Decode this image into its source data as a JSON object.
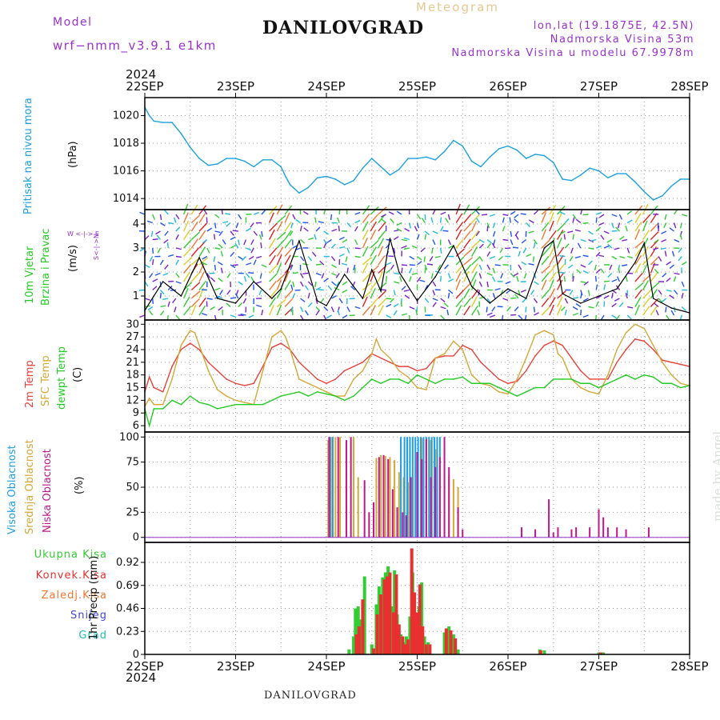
{
  "header": {
    "model_label": "Model",
    "model_name": "wrf−nmm_v3.9.1  e1km",
    "title": "DANILOVGRAD",
    "meteogram": "Meteogram",
    "lonlat": "lon,lat (19.1875E, 42.5N)",
    "elev": "Nadmorska Visina 53m",
    "elev_model": "Nadmorska Visina u modelu 67.9978m",
    "year_top": "2024",
    "year_bottom": "2024",
    "footer_title": "DANILOVGRAD",
    "watermark": "made by Angel"
  },
  "colors": {
    "pressure": "#1ba0e0",
    "temp2m": "#e8413a",
    "sfc": "#d4a838",
    "dewpt": "#22cc22",
    "high_cloud": "#1e9ee8",
    "mid_cloud": "#d4a838",
    "low_cloud": "#c0188c",
    "total_precip": "#33cc33",
    "conv_precip": "#e83030",
    "frozen_precip": "#ee7733",
    "snow": "#4444dd",
    "hail": "#22bbbb",
    "axis_purple": "#9932cc"
  },
  "panels": {
    "pressure": {
      "label": "Pritisak na nivou mora",
      "unit": "(hPa)"
    },
    "wind": {
      "label1": "10m Vjetar",
      "label2": "Brzina i Pravac",
      "unit": "(m/s)",
      "compass": "W  <-|->  E",
      "compass_ns": "S<-|->N"
    },
    "temp": {
      "label1": "2m Temp",
      "label2": "SFC Temp",
      "label3": "dewpt Temp",
      "unit": "(C)"
    },
    "cloud": {
      "label1": "Visoka Oblacnost",
      "label2": "Srednja Oblacnost",
      "label3": "Niska Oblacnost",
      "unit": "(%)"
    },
    "precip": {
      "legend": [
        "Ukupna Kisa",
        "Konvek.Kisa",
        "Zaledj.Kisa",
        "Snijeg",
        "Grad"
      ],
      "unit": "1hr Precip (mm)"
    }
  },
  "chart_data": [
    {
      "type": "line",
      "panel": "pressure",
      "x_ticks": [
        "22SEP",
        "23SEP",
        "24SEP",
        "25SEP",
        "26SEP",
        "27SEP",
        "28SEP"
      ],
      "ylim": [
        1013.2,
        1021.3
      ],
      "y_ticks": [
        1014,
        1016,
        1018,
        1020
      ],
      "grid": true,
      "series": [
        {
          "color_key": "pressure",
          "x": [
            0,
            0.05,
            0.1,
            0.2,
            0.3,
            0.4,
            0.5,
            0.6,
            0.7,
            0.8,
            0.9,
            1.0,
            1.1,
            1.2,
            1.3,
            1.4,
            1.5,
            1.55,
            1.6,
            1.7,
            1.8,
            1.9,
            2.0,
            2.1,
            2.2,
            2.3,
            2.4,
            2.5,
            2.6,
            2.7,
            2.8,
            2.9,
            3.0,
            3.1,
            3.2,
            3.3,
            3.4,
            3.5,
            3.6,
            3.7,
            3.8,
            3.9,
            4.0,
            4.1,
            4.2,
            4.3,
            4.4,
            4.5,
            4.6,
            4.7,
            4.8,
            4.9,
            5.0,
            5.1,
            5.2,
            5.3,
            5.4,
            5.5,
            5.6,
            5.7,
            5.8,
            5.9,
            6.0
          ],
          "y": [
            1020.6,
            1020.0,
            1019.6,
            1019.5,
            1019.5,
            1018.7,
            1017.7,
            1016.9,
            1016.4,
            1016.5,
            1016.9,
            1016.9,
            1016.7,
            1016.3,
            1016.8,
            1016.8,
            1016.3,
            1015.6,
            1015.0,
            1014.4,
            1014.8,
            1015.5,
            1015.6,
            1015.4,
            1015.0,
            1015.3,
            1016.2,
            1016.9,
            1016.3,
            1015.7,
            1016.1,
            1016.9,
            1016.9,
            1017.0,
            1016.8,
            1017.4,
            1018.2,
            1017.8,
            1016.7,
            1016.3,
            1017.0,
            1017.6,
            1017.8,
            1017.5,
            1016.9,
            1017.2,
            1017.1,
            1016.6,
            1015.4,
            1015.3,
            1015.7,
            1016.2,
            1016.0,
            1015.5,
            1015.8,
            1015.8,
            1015.2,
            1014.5,
            1013.9,
            1014.2,
            1014.9,
            1015.4,
            1015.4
          ]
        }
      ]
    },
    {
      "type": "line",
      "panel": "wind",
      "ylim": [
        0,
        4.6
      ],
      "y_ticks": [
        1,
        2,
        3,
        4
      ],
      "grid": true,
      "series": [
        {
          "name": "speed",
          "x": [
            0,
            0.2,
            0.4,
            0.6,
            0.8,
            1.0,
            1.2,
            1.4,
            1.5,
            1.7,
            1.9,
            2.0,
            2.2,
            2.4,
            2.5,
            2.6,
            2.7,
            2.8,
            3.0,
            3.2,
            3.4,
            3.6,
            3.8,
            4.0,
            4.2,
            4.4,
            4.5,
            4.6,
            4.8,
            5.0,
            5.2,
            5.4,
            5.5,
            5.6,
            5.8,
            6.0
          ],
          "y": [
            0.4,
            1.6,
            1.0,
            2.6,
            0.9,
            0.7,
            1.6,
            0.9,
            1.3,
            3.3,
            0.8,
            0.6,
            1.9,
            0.9,
            2.1,
            1.2,
            3.4,
            2.0,
            0.8,
            1.8,
            3.1,
            1.4,
            0.7,
            1.3,
            0.9,
            3.0,
            3.3,
            1.1,
            0.7,
            1.0,
            1.3,
            2.4,
            3.2,
            0.9,
            0.5,
            0.3
          ]
        }
      ]
    },
    {
      "type": "line",
      "panel": "temp",
      "ylim": [
        4.5,
        31
      ],
      "y_ticks": [
        6,
        9,
        12,
        15,
        18,
        21,
        24,
        27,
        30
      ],
      "grid": true,
      "series": [
        {
          "color_key": "temp2m",
          "x": [
            0,
            0.05,
            0.1,
            0.2,
            0.3,
            0.4,
            0.5,
            0.6,
            0.7,
            0.8,
            0.9,
            1.0,
            1.1,
            1.2,
            1.3,
            1.4,
            1.5,
            1.6,
            1.7,
            1.8,
            1.9,
            2.0,
            2.1,
            2.2,
            2.3,
            2.4,
            2.5,
            2.6,
            2.7,
            2.8,
            2.9,
            3.0,
            3.1,
            3.2,
            3.3,
            3.4,
            3.5,
            3.6,
            3.7,
            3.8,
            3.9,
            4.0,
            4.1,
            4.2,
            4.3,
            4.4,
            4.5,
            4.6,
            4.7,
            4.8,
            4.9,
            5.0,
            5.1,
            5.2,
            5.3,
            5.4,
            5.5,
            5.6,
            5.7,
            5.8,
            5.9,
            6.0
          ],
          "y": [
            14,
            17.5,
            15,
            14,
            20,
            24,
            25.5,
            24,
            21,
            19,
            17,
            16,
            15.5,
            16,
            20,
            24.5,
            25.5,
            24,
            21,
            19,
            17,
            16,
            17,
            19,
            20,
            21,
            23,
            22,
            21,
            20,
            20,
            19,
            19.5,
            22,
            22.5,
            22.5,
            25,
            24,
            21,
            19,
            17,
            16,
            16.5,
            19,
            22.5,
            25,
            26,
            25,
            22,
            19,
            17,
            17,
            17,
            21,
            24,
            26.5,
            26,
            24,
            21.5,
            21,
            20.5,
            20
          ]
        },
        {
          "color_key": "sfc",
          "x": [
            0,
            0.05,
            0.1,
            0.2,
            0.3,
            0.4,
            0.5,
            0.55,
            0.6,
            0.7,
            0.8,
            0.9,
            1.0,
            1.1,
            1.2,
            1.3,
            1.4,
            1.5,
            1.55,
            1.6,
            1.7,
            1.8,
            1.9,
            2.0,
            2.1,
            2.2,
            2.3,
            2.4,
            2.5,
            2.55,
            2.6,
            2.7,
            2.8,
            2.9,
            3.0,
            3.1,
            3.2,
            3.3,
            3.4,
            3.5,
            3.6,
            3.7,
            3.8,
            3.9,
            4.0,
            4.1,
            4.2,
            4.3,
            4.4,
            4.5,
            4.55,
            4.6,
            4.7,
            4.8,
            4.9,
            5.0,
            5.1,
            5.2,
            5.3,
            5.4,
            5.5,
            5.6,
            5.7,
            5.8,
            5.9,
            6.0
          ],
          "y": [
            10.5,
            12.5,
            11,
            11,
            17,
            25,
            28.5,
            28,
            25,
            19,
            14.5,
            13,
            12,
            11.5,
            11,
            19,
            27,
            28.5,
            27,
            24,
            17,
            16,
            15,
            14,
            13,
            13,
            17,
            19,
            23,
            26.5,
            24,
            22,
            19,
            17.5,
            15,
            14.5,
            22,
            23,
            26,
            24,
            18,
            16,
            15.5,
            14,
            13.5,
            17,
            22,
            27.5,
            28.5,
            27.5,
            23,
            22,
            17,
            15,
            14,
            13.5,
            18,
            24,
            28,
            30,
            29,
            25,
            21,
            18,
            16,
            15.5
          ]
        },
        {
          "color_key": "dewpt",
          "x": [
            0,
            0.05,
            0.1,
            0.2,
            0.3,
            0.4,
            0.5,
            0.6,
            0.7,
            0.8,
            0.9,
            1.0,
            1.1,
            1.2,
            1.3,
            1.4,
            1.5,
            1.6,
            1.7,
            1.8,
            1.9,
            2.0,
            2.1,
            2.2,
            2.3,
            2.4,
            2.5,
            2.6,
            2.7,
            2.8,
            2.9,
            3.0,
            3.1,
            3.2,
            3.3,
            3.4,
            3.5,
            3.6,
            3.7,
            3.8,
            3.9,
            4.0,
            4.1,
            4.2,
            4.3,
            4.4,
            4.5,
            4.6,
            4.7,
            4.8,
            4.9,
            5.0,
            5.1,
            5.2,
            5.3,
            5.4,
            5.5,
            5.6,
            5.7,
            5.8,
            5.9,
            6.0
          ],
          "y": [
            10,
            6,
            10,
            10,
            12,
            11,
            13,
            11.5,
            11,
            10,
            10.5,
            11,
            11,
            11,
            11,
            12,
            13,
            13.5,
            14,
            13,
            14,
            13.5,
            13,
            12,
            13,
            15,
            17,
            16,
            17,
            17,
            16,
            18,
            17,
            16,
            17,
            17,
            17.5,
            16,
            16,
            16,
            15,
            14,
            13,
            14,
            15,
            15,
            17,
            17,
            17,
            16,
            16,
            15,
            16,
            17,
            18,
            17,
            18,
            17.5,
            16,
            16,
            15,
            15.5
          ]
        }
      ]
    },
    {
      "type": "bar",
      "panel": "cloud",
      "ylim": [
        -5,
        105
      ],
      "y_ticks": [
        0,
        25,
        50,
        75,
        100
      ],
      "grid": true,
      "series": [
        {
          "color_key": "mid_cloud",
          "x": [
            2.02,
            2.05,
            2.1,
            2.15,
            2.3,
            2.35,
            2.55,
            2.6,
            2.65,
            2.7,
            2.75,
            2.8,
            2.85,
            2.9,
            2.95,
            3.0,
            3.05,
            3.1,
            3.15,
            3.2,
            3.25,
            3.3,
            3.35,
            3.4,
            3.45
          ],
          "y": [
            97,
            100,
            100,
            100,
            100,
            60,
            79,
            82,
            81,
            80,
            77,
            65,
            60,
            55,
            60,
            62,
            99,
            99,
            97,
            88,
            71,
            65,
            62,
            58,
            50
          ]
        },
        {
          "color_key": "high_cloud",
          "x": [
            2.04,
            2.07,
            2.82,
            2.86,
            2.89,
            2.92,
            2.95,
            2.98,
            3.01,
            3.04,
            3.07,
            3.1,
            3.13,
            3.16,
            3.19,
            3.22,
            3.25
          ],
          "y": [
            100,
            100,
            100,
            100,
            100,
            100,
            100,
            100,
            100,
            100,
            100,
            100,
            100,
            100,
            100,
            100,
            100
          ]
        },
        {
          "color_key": "low_cloud",
          "x": [
            2.03,
            2.13,
            2.22,
            2.27,
            2.42,
            2.47,
            2.52,
            2.58,
            2.63,
            2.68,
            2.73,
            2.78,
            2.84,
            2.88,
            2.93,
            3.0,
            3.05,
            3.1,
            3.15,
            3.2,
            3.25,
            3.3,
            3.35,
            3.45,
            3.5,
            4.15,
            4.3,
            4.45,
            4.5,
            4.55,
            4.7,
            4.75,
            4.9,
            5.0,
            5.05,
            5.1,
            5.2,
            5.3,
            5.55
          ],
          "y": [
            100,
            100,
            97,
            100,
            57,
            25,
            35,
            80,
            82,
            78,
            48,
            30,
            25,
            22,
            60,
            85,
            78,
            98,
            60,
            70,
            80,
            100,
            70,
            30,
            8,
            10,
            8,
            38,
            5,
            10,
            8,
            10,
            10,
            28,
            20,
            10,
            10,
            8,
            10
          ]
        }
      ]
    },
    {
      "type": "bar",
      "panel": "precip",
      "x_ticks": [
        "22SEP",
        "23SEP",
        "24SEP",
        "25SEP",
        "26SEP",
        "27SEP",
        "28SEP"
      ],
      "ylim": [
        0,
        1.12
      ],
      "y_ticks": [
        0,
        0.23,
        0.46,
        0.69,
        0.92
      ],
      "grid": true,
      "series": [
        {
          "color_key": "total_precip",
          "x": [
            2.25,
            2.3,
            2.32,
            2.35,
            2.38,
            2.42,
            2.5,
            2.55,
            2.58,
            2.62,
            2.65,
            2.68,
            2.72,
            2.75,
            2.78,
            2.82,
            2.85,
            2.88,
            2.92,
            2.95,
            3.02,
            3.05,
            3.08,
            3.12,
            3.3,
            3.35,
            3.4,
            3.45,
            4.35,
            4.4,
            5.0,
            5.05
          ],
          "y": [
            0.05,
            0.18,
            0.46,
            0.48,
            0.35,
            0.78,
            0.1,
            0.5,
            0.68,
            0.77,
            0.82,
            0.88,
            0.48,
            0.84,
            0.4,
            0.2,
            0.12,
            0.18,
            0.38,
            0.82,
            0.48,
            0.72,
            0.18,
            0.12,
            0.22,
            0.28,
            0.2,
            0.05,
            0.05,
            0.04,
            0.02,
            0.02
          ]
        },
        {
          "color_key": "conv_precip",
          "x": [
            2.33,
            2.36,
            2.4,
            2.52,
            2.56,
            2.6,
            2.64,
            2.67,
            2.7,
            2.74,
            2.77,
            2.8,
            2.84,
            2.87,
            2.9,
            2.94,
            2.97,
            3.0,
            3.03,
            3.06,
            3.1,
            3.14,
            3.32,
            3.37,
            3.42,
            4.36,
            5.02
          ],
          "y": [
            0.2,
            0.28,
            0.55,
            0.06,
            0.4,
            0.6,
            0.75,
            0.78,
            0.82,
            0.42,
            0.8,
            0.3,
            0.18,
            0.1,
            0.15,
            1.06,
            0.62,
            0.42,
            0.7,
            0.28,
            0.1,
            0.1,
            0.26,
            0.24,
            0.16,
            0.04,
            0.02
          ]
        }
      ]
    }
  ]
}
